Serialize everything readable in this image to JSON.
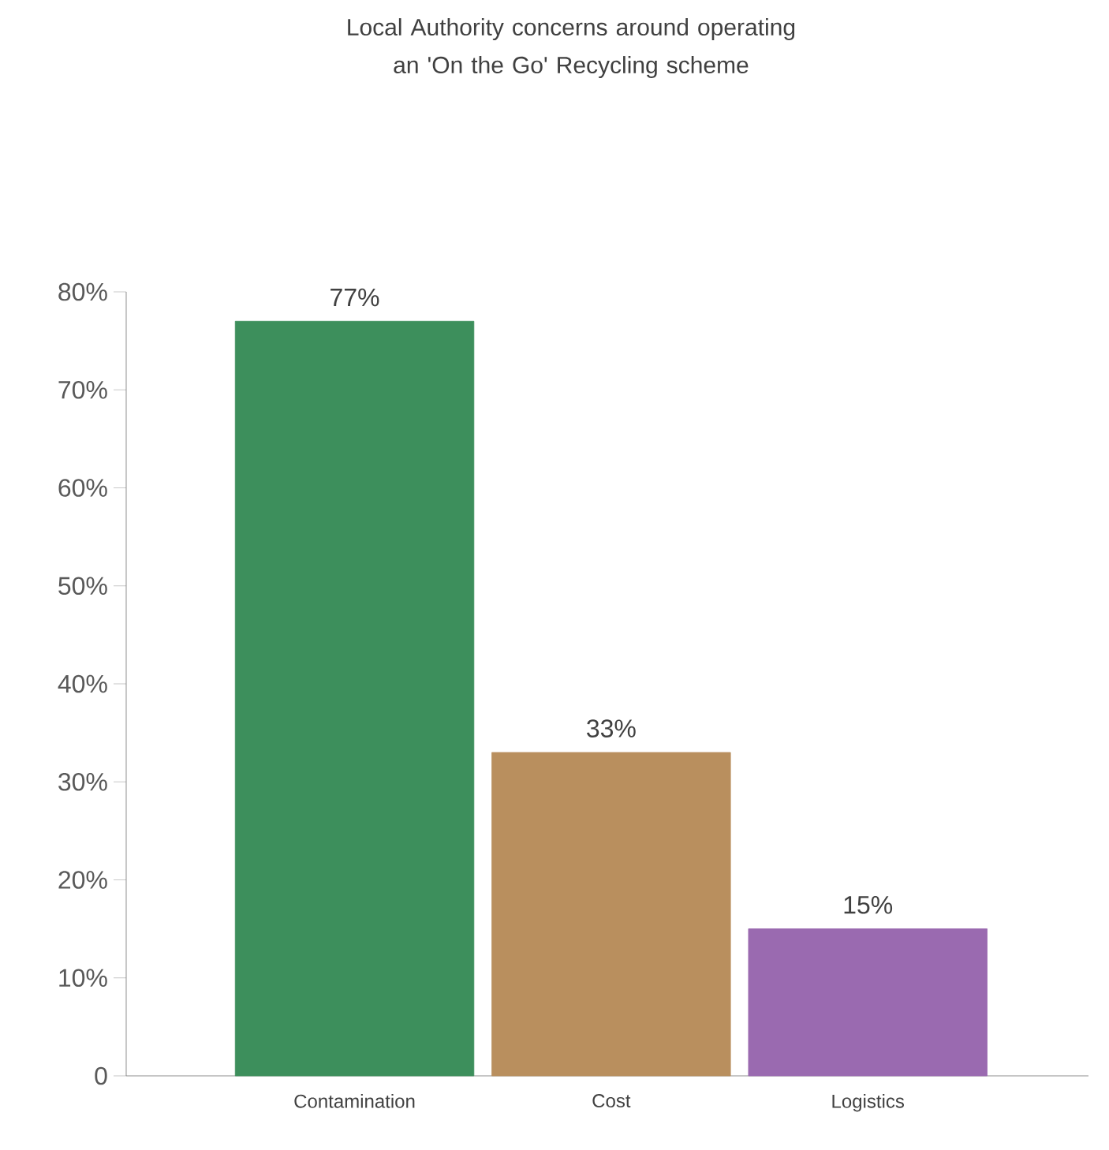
{
  "chart_data": {
    "type": "bar",
    "title": "Local Authority concerns around operating an 'On the Go' Recycling scheme",
    "categories": [
      "Contamination",
      "Cost",
      "Logistics"
    ],
    "values": [
      77,
      33,
      15
    ],
    "colors": [
      "#3d8f5c",
      "#b98f5e",
      "#9a6ab0"
    ],
    "value_labels": [
      "77%",
      "33%",
      "15%"
    ],
    "ylim": [
      0,
      80
    ],
    "yticks": [
      0,
      {
        "value": 10,
        "label": "10%"
      },
      {
        "value": 20,
        "label": "20%"
      },
      {
        "value": 30,
        "label": "30%"
      },
      {
        "value": 40,
        "label": "40%"
      },
      {
        "value": 50,
        "label": "50%"
      },
      {
        "value": 60,
        "label": "60%"
      },
      {
        "value": 70,
        "label": "70%"
      },
      {
        "value": 80,
        "label": "80%"
      }
    ],
    "grid": false
  }
}
